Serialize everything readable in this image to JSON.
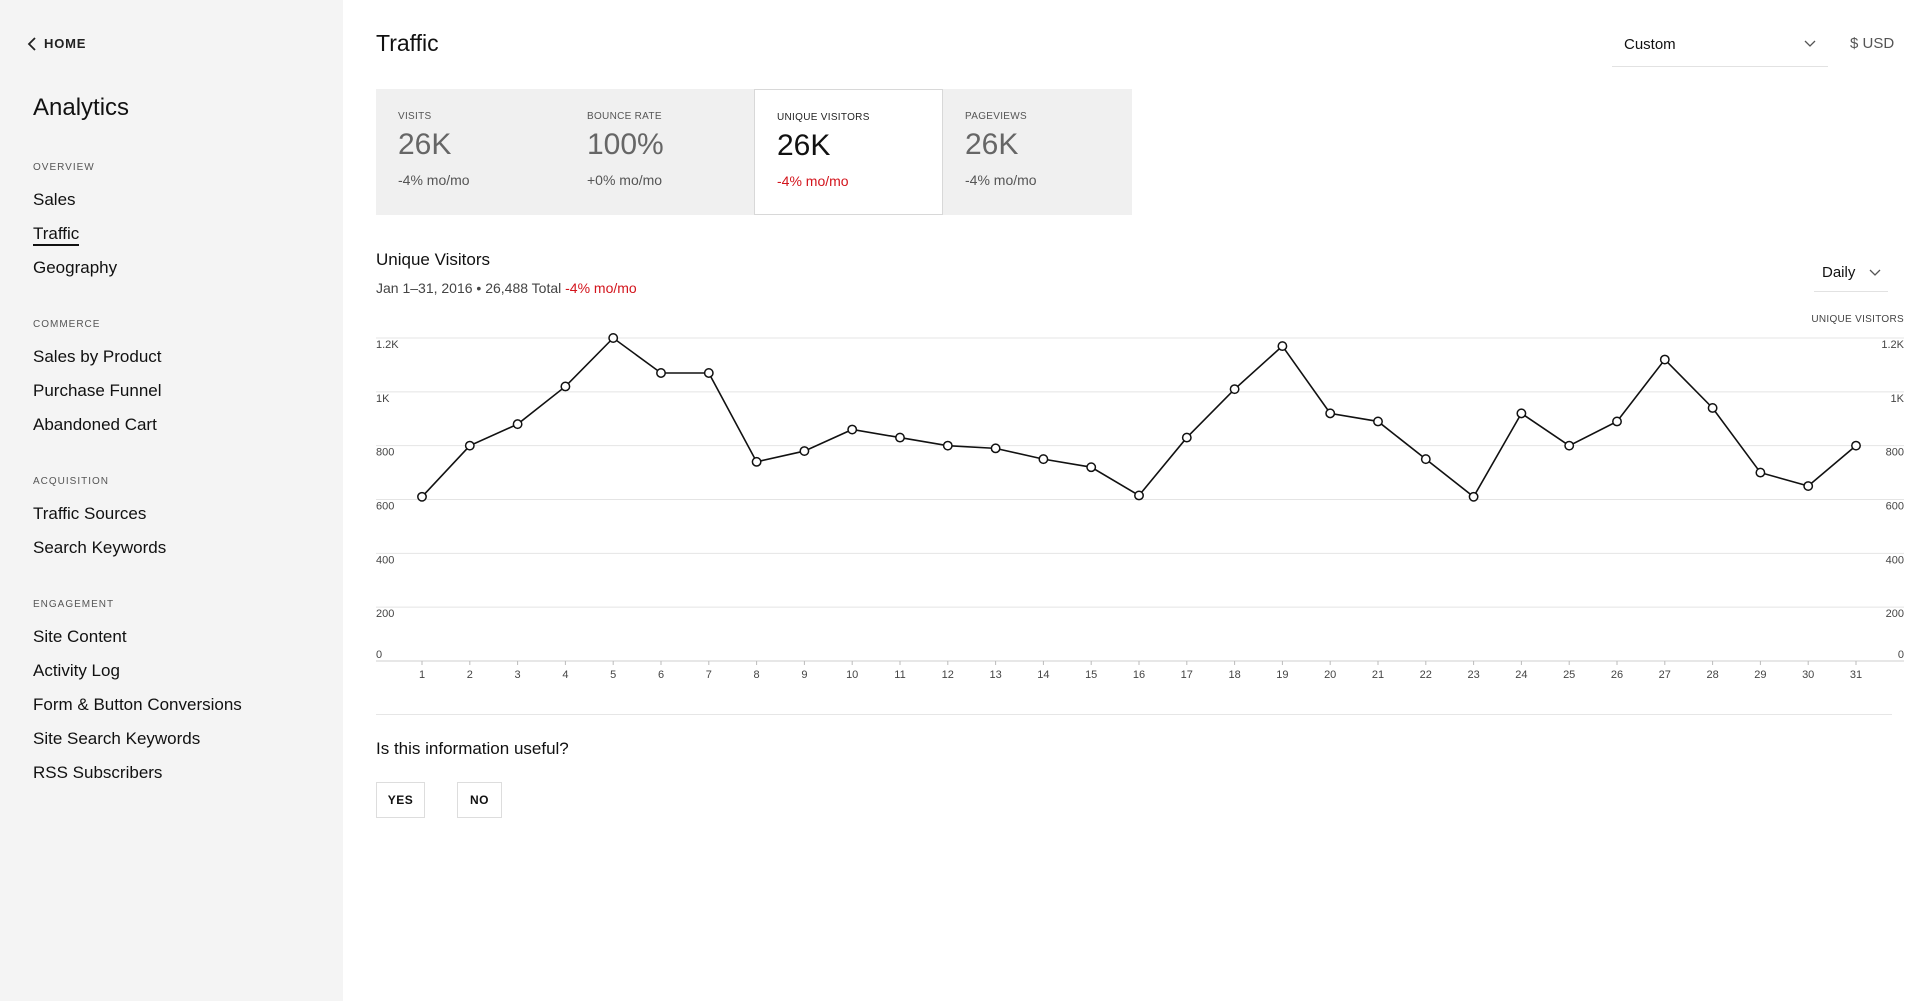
{
  "sidebar": {
    "home_label": "HOME",
    "title": "Analytics",
    "sections": [
      {
        "heading": "OVERVIEW",
        "items": [
          {
            "label": "Sales"
          },
          {
            "label": "Traffic"
          },
          {
            "label": "Geography"
          }
        ]
      },
      {
        "heading": "COMMERCE",
        "items": [
          {
            "label": "Sales by Product"
          },
          {
            "label": "Purchase Funnel"
          },
          {
            "label": "Abandoned Cart"
          }
        ]
      },
      {
        "heading": "ACQUISITION",
        "items": [
          {
            "label": "Traffic Sources"
          },
          {
            "label": "Search Keywords"
          }
        ]
      },
      {
        "heading": "ENGAGEMENT",
        "items": [
          {
            "label": "Site Content"
          },
          {
            "label": "Activity Log"
          },
          {
            "label": "Form & Button Conversions"
          },
          {
            "label": "Site Search Keywords"
          },
          {
            "label": "RSS Subscribers"
          }
        ]
      }
    ],
    "active_item": "Traffic"
  },
  "header": {
    "title": "Traffic",
    "range_select": "Custom",
    "currency": "$ USD"
  },
  "cards": [
    {
      "label": "VISITS",
      "value": "26K",
      "change": "-4% mo/mo",
      "active": false
    },
    {
      "label": "BOUNCE RATE",
      "value": "100%",
      "change": "+0% mo/mo",
      "active": false
    },
    {
      "label": "UNIQUE VISITORS",
      "value": "26K",
      "change": "-4% mo/mo",
      "active": true
    },
    {
      "label": "PAGEVIEWS",
      "value": "26K",
      "change": "-4% mo/mo",
      "active": false
    }
  ],
  "chart_header": {
    "title": "Unique Visitors",
    "subtitle": "Jan 1–31, 2016 • 26,488 Total",
    "change": "-4% mo/mo",
    "interval": "Daily"
  },
  "chart_data": {
    "type": "line",
    "title": "Unique Visitors",
    "series_label": "UNIQUE VISITORS",
    "x": [
      1,
      2,
      3,
      4,
      5,
      6,
      7,
      8,
      9,
      10,
      11,
      12,
      13,
      14,
      15,
      16,
      17,
      18,
      19,
      20,
      21,
      22,
      23,
      24,
      25,
      26,
      27,
      28,
      29,
      30,
      31
    ],
    "series": [
      {
        "name": "UNIQUE VISITORS",
        "values": [
          610,
          800,
          880,
          1020,
          1200,
          1070,
          1070,
          740,
          780,
          860,
          830,
          800,
          790,
          750,
          720,
          615,
          830,
          1010,
          1170,
          920,
          890,
          750,
          610,
          920,
          800,
          890,
          1120,
          940,
          700,
          650,
          800
        ]
      }
    ],
    "ylim": [
      0,
      1200
    ],
    "yticks": [
      0,
      200,
      400,
      600,
      800,
      1000,
      1200
    ],
    "ytick_labels": [
      "0",
      "200",
      "400",
      "600",
      "800",
      "1K",
      "1.2K"
    ],
    "grid": true,
    "line_color": "#111111",
    "marker_fill": "#ffffff"
  },
  "feedback": {
    "question": "Is this information useful?",
    "yes": "YES",
    "no": "NO"
  },
  "colors": {
    "negative": "#d3141c",
    "sidebar_bg": "#f4f4f4",
    "card_bg": "#f0f0f0"
  }
}
